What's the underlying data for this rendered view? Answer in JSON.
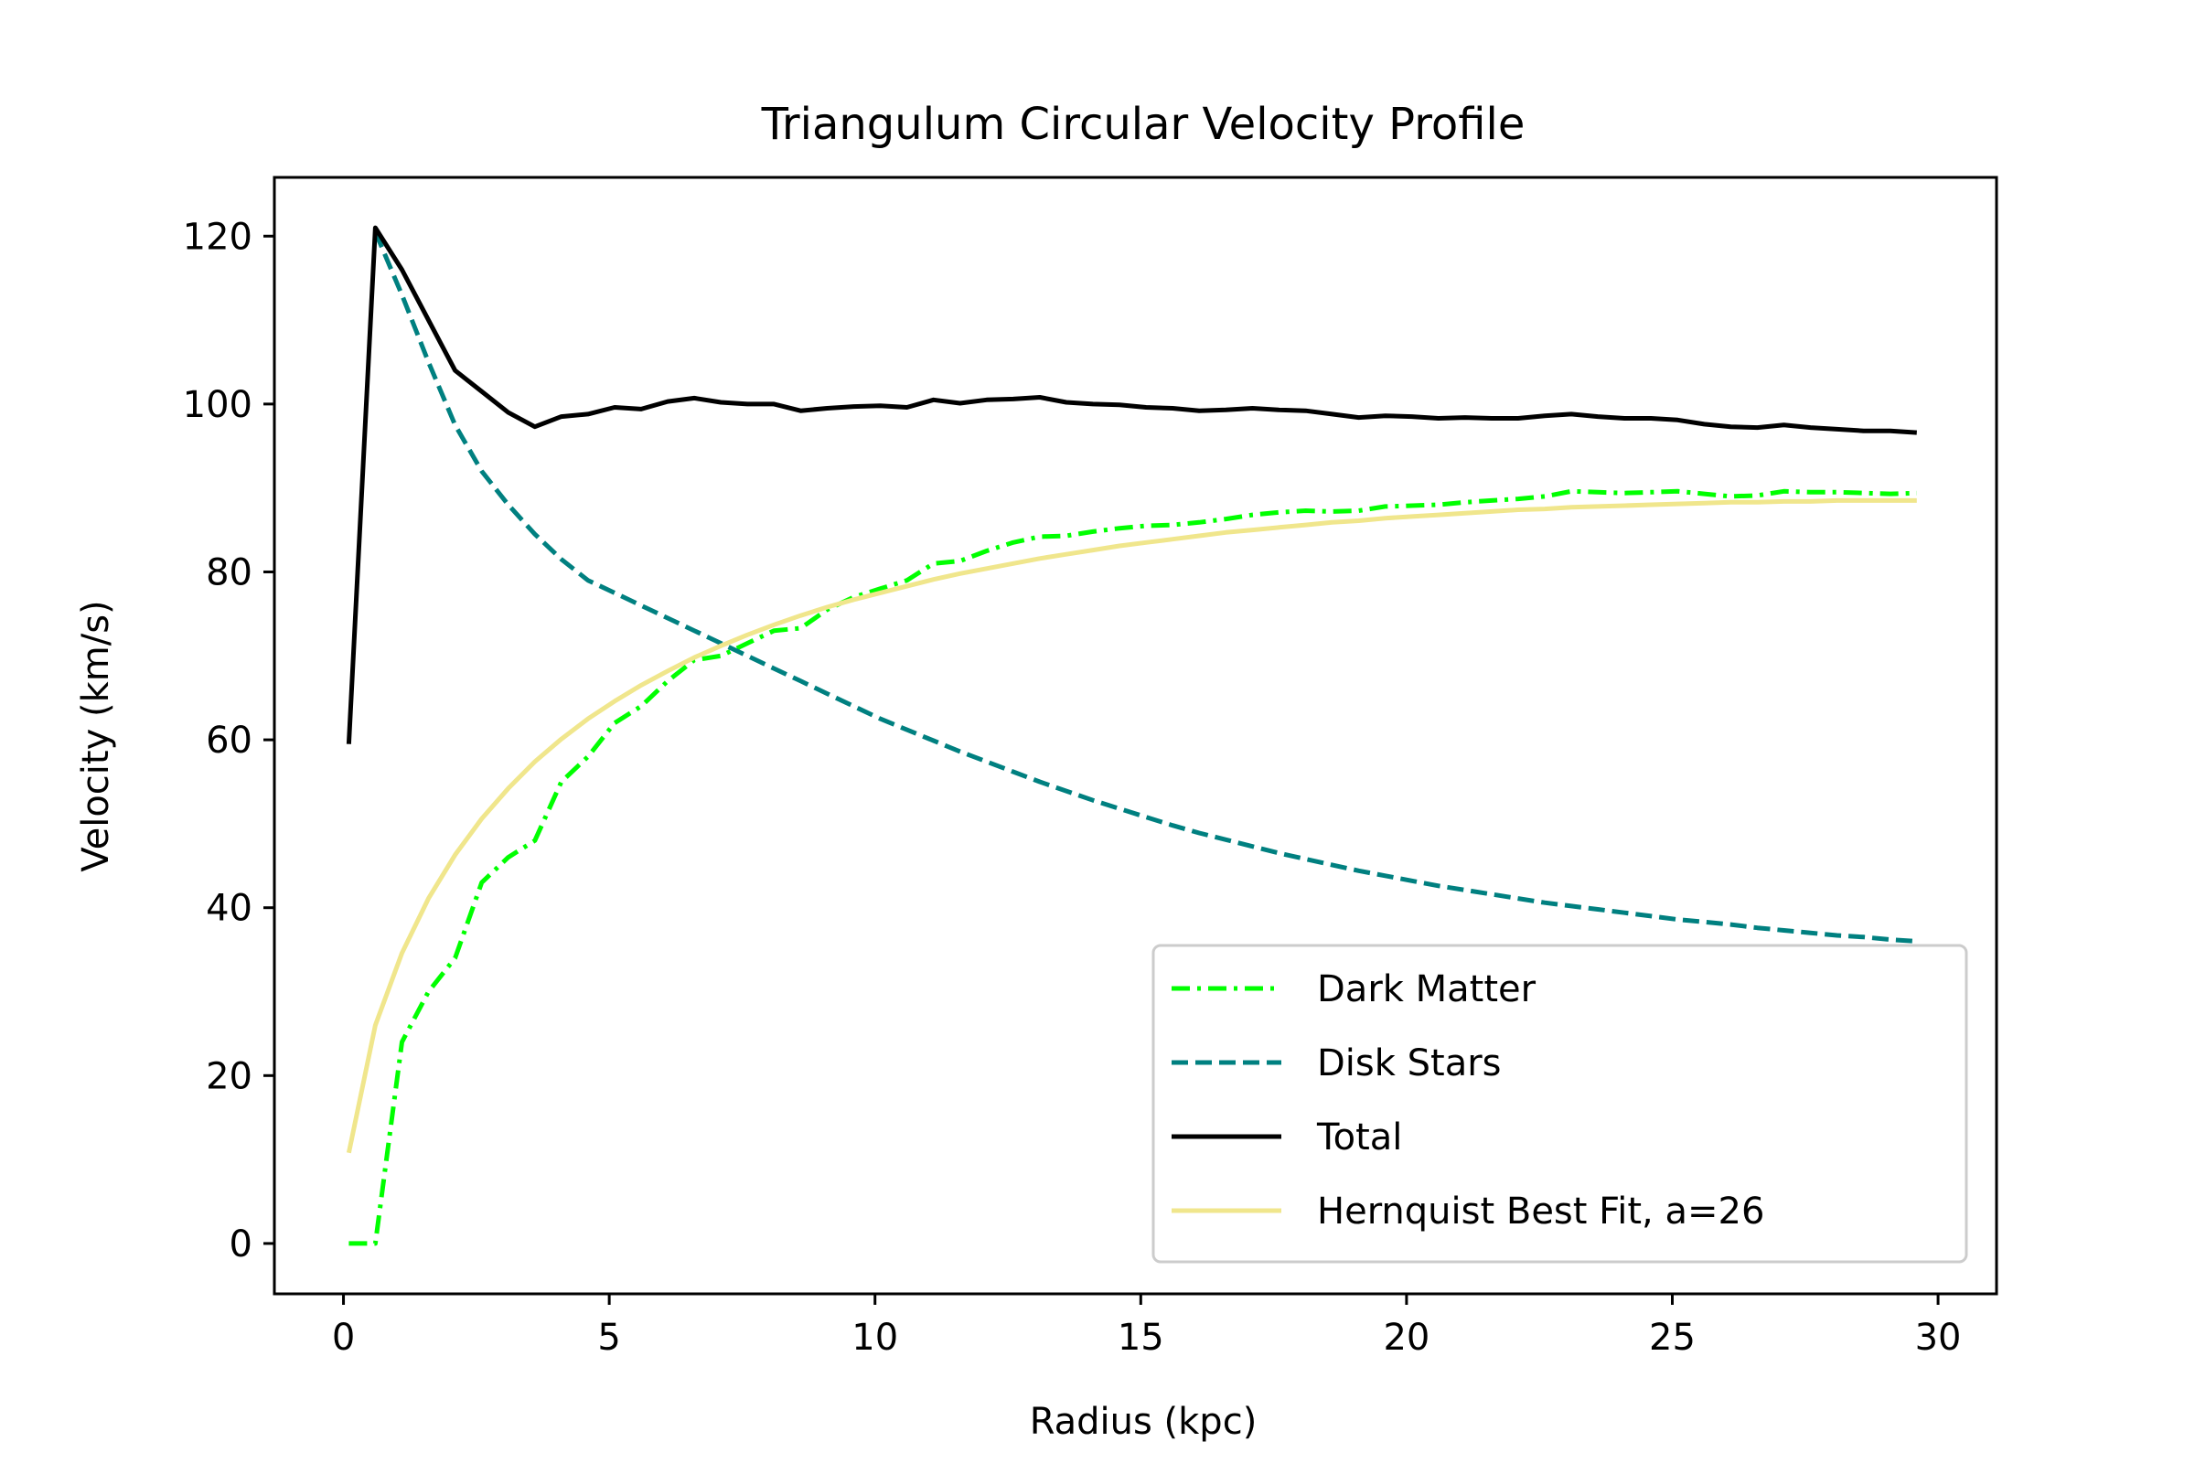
{
  "chart_data": {
    "type": "line",
    "title": "Triangulum Circular Velocity Profile",
    "xlabel": "Radius (kpc)",
    "ylabel": "Velocity (km/s)",
    "xlim": [
      -1.3,
      31.1
    ],
    "ylim": [
      -6,
      127
    ],
    "xticks": [
      0,
      5,
      10,
      15,
      20,
      25,
      30
    ],
    "yticks": [
      0,
      20,
      40,
      60,
      80,
      100,
      120
    ],
    "grid": false,
    "legend_position": "lower-right",
    "series": [
      {
        "name": "Dark Matter",
        "color": "#00ff00",
        "style": "dashdot",
        "x": [
          0.1,
          0.6,
          1.1,
          1.6,
          2.1,
          2.6,
          3.1,
          3.6,
          4.1,
          4.6,
          5.1,
          5.6,
          6.1,
          6.6,
          7.1,
          7.6,
          8.1,
          8.6,
          9.1,
          9.6,
          10.1,
          10.6,
          11.1,
          11.6,
          12.1,
          12.6,
          13.1,
          13.6,
          14.1,
          14.6,
          15.1,
          15.6,
          16.1,
          16.6,
          17.1,
          17.6,
          18.1,
          18.6,
          19.1,
          19.6,
          20.1,
          20.6,
          21.1,
          21.6,
          22.1,
          22.6,
          23.1,
          23.6,
          24.1,
          24.6,
          25.1,
          25.6,
          26.1,
          26.6,
          27.1,
          27.6,
          28.1,
          28.6,
          29.1,
          29.6
        ],
        "y": [
          0,
          0,
          24,
          30,
          34,
          43,
          46,
          48,
          55,
          58,
          62,
          64,
          67,
          69.5,
          70,
          71.5,
          73,
          73.3,
          75.5,
          77,
          78,
          79,
          81,
          81.3,
          82.5,
          83.5,
          84.2,
          84.3,
          84.8,
          85.2,
          85.5,
          85.6,
          85.9,
          86.3,
          86.8,
          87.1,
          87.3,
          87.2,
          87.3,
          87.8,
          87.9,
          88,
          88.3,
          88.5,
          88.7,
          89,
          89.6,
          89.5,
          89.4,
          89.5,
          89.6,
          89.3,
          89,
          89.1,
          89.6,
          89.5,
          89.5,
          89.4,
          89.3,
          89.4
        ]
      },
      {
        "name": "Disk Stars",
        "color": "#008080",
        "style": "dashed",
        "x": [
          0.6,
          1.1,
          1.6,
          2.1,
          2.6,
          3.1,
          3.6,
          4.1,
          4.6,
          5.1,
          5.6,
          6.1,
          6.6,
          7.1,
          7.6,
          8.1,
          8.6,
          9.1,
          9.6,
          10.1,
          10.6,
          11.1,
          11.6,
          12.1,
          12.6,
          13.1,
          13.6,
          14.1,
          14.6,
          15.1,
          15.6,
          16.1,
          16.6,
          17.1,
          17.6,
          18.1,
          18.6,
          19.1,
          19.6,
          20.1,
          20.6,
          21.1,
          21.6,
          22.1,
          22.6,
          23.1,
          23.6,
          24.1,
          24.6,
          25.1,
          25.6,
          26.1,
          26.6,
          27.1,
          27.6,
          28.1,
          28.6,
          29.1,
          29.6
        ],
        "y": [
          120.5,
          113,
          105,
          97.5,
          92,
          88,
          84.5,
          81.5,
          79,
          77.5,
          76,
          74.5,
          73,
          71.5,
          70,
          68.5,
          67,
          65.5,
          64,
          62.5,
          61.2,
          59.9,
          58.6,
          57.4,
          56.2,
          55,
          53.9,
          52.8,
          51.8,
          50.8,
          49.8,
          48.9,
          48.1,
          47.3,
          46.5,
          45.8,
          45.1,
          44.4,
          43.8,
          43.2,
          42.6,
          42.1,
          41.6,
          41.1,
          40.6,
          40.2,
          39.8,
          39.4,
          39,
          38.6,
          38.3,
          38,
          37.6,
          37.3,
          37,
          36.7,
          36.5,
          36.2,
          36
        ]
      },
      {
        "name": "Total",
        "color": "#000000",
        "style": "solid",
        "x": [
          0.1,
          0.6,
          1.1,
          1.6,
          2.1,
          2.6,
          3.1,
          3.6,
          4.1,
          4.6,
          5.1,
          5.6,
          6.1,
          6.6,
          7.1,
          7.6,
          8.1,
          8.6,
          9.1,
          9.6,
          10.1,
          10.6,
          11.1,
          11.6,
          12.1,
          12.6,
          13.1,
          13.6,
          14.1,
          14.6,
          15.1,
          15.6,
          16.1,
          16.6,
          17.1,
          17.6,
          18.1,
          18.6,
          19.1,
          19.6,
          20.1,
          20.6,
          21.1,
          21.6,
          22.1,
          22.6,
          23.1,
          23.6,
          24.1,
          24.6,
          25.1,
          25.6,
          26.1,
          26.6,
          27.1,
          27.6,
          28.1,
          28.6,
          29.1,
          29.6
        ],
        "y": [
          59.5,
          121,
          116,
          110,
          104,
          101.5,
          99,
          97.3,
          98.5,
          98.8,
          99.6,
          99.4,
          100.3,
          100.7,
          100.2,
          100,
          100,
          99.2,
          99.5,
          99.7,
          99.8,
          99.6,
          100.5,
          100.1,
          100.5,
          100.6,
          100.8,
          100.2,
          100,
          99.9,
          99.6,
          99.5,
          99.2,
          99.3,
          99.5,
          99.3,
          99.2,
          98.8,
          98.4,
          98.6,
          98.5,
          98.3,
          98.4,
          98.3,
          98.3,
          98.6,
          98.8,
          98.5,
          98.3,
          98.3,
          98.1,
          97.6,
          97.3,
          97.2,
          97.5,
          97.2,
          97,
          96.8,
          96.8,
          96.6
        ]
      },
      {
        "name": "Hernquist Best Fit, a=26",
        "color": "#f0e68c",
        "style": "solid",
        "x": [
          0.1,
          0.6,
          1.1,
          1.6,
          2.1,
          2.6,
          3.1,
          3.6,
          4.1,
          4.6,
          5.1,
          5.6,
          6.1,
          6.6,
          7.1,
          7.6,
          8.1,
          8.6,
          9.1,
          9.6,
          10.1,
          10.6,
          11.1,
          11.6,
          12.1,
          12.6,
          13.1,
          13.6,
          14.1,
          14.6,
          15.1,
          15.6,
          16.1,
          16.6,
          17.1,
          17.6,
          18.1,
          18.6,
          19.1,
          19.6,
          20.1,
          20.6,
          21.1,
          21.6,
          22.1,
          22.6,
          23.1,
          23.6,
          24.1,
          24.6,
          25.1,
          25.6,
          26.1,
          26.6,
          27.1,
          27.6,
          28.1,
          28.6,
          29.1,
          29.6
        ],
        "y": [
          10.8,
          26,
          34.6,
          41.1,
          46.3,
          50.6,
          54.2,
          57.4,
          60.1,
          62.5,
          64.6,
          66.5,
          68.2,
          69.8,
          71.2,
          72.5,
          73.7,
          74.8,
          75.8,
          76.7,
          77.5,
          78.3,
          79.1,
          79.8,
          80.4,
          81,
          81.6,
          82.1,
          82.6,
          83.1,
          83.5,
          83.9,
          84.3,
          84.7,
          85,
          85.3,
          85.6,
          85.9,
          86.1,
          86.4,
          86.6,
          86.8,
          87,
          87.2,
          87.4,
          87.5,
          87.7,
          87.8,
          87.9,
          88,
          88.1,
          88.2,
          88.3,
          88.3,
          88.4,
          88.4,
          88.5,
          88.5,
          88.5,
          88.5
        ]
      }
    ]
  }
}
